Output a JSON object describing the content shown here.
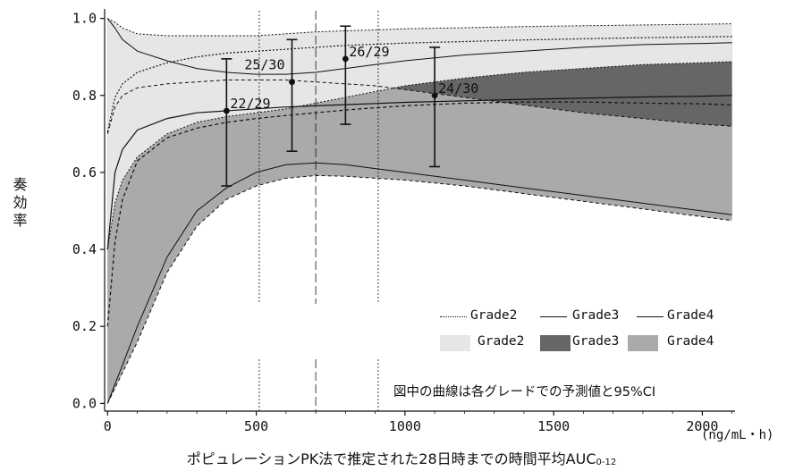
{
  "chart_data": {
    "type": "line",
    "ylabel": "奏効率",
    "xlabel": "ポピュレーションPK法で推定された28日時までの時間平均AUC",
    "xlabel_sub": "0-12",
    "x_unit": "(ng/mL・h)",
    "xlim": [
      -10,
      2110
    ],
    "ylim": [
      -0.02,
      1.02
    ],
    "x_ticks": [
      0,
      500,
      1000,
      1500,
      2000
    ],
    "x_tick_labels": [
      "0",
      "500",
      "1000",
      "1500",
      "2000"
    ],
    "y_ticks": [
      0,
      0.2,
      0.4,
      0.6,
      0.8,
      1.0
    ],
    "y_tick_labels": [
      "0.0",
      "0.2",
      "0.4",
      "0.6",
      "0.8",
      "1.0"
    ],
    "grid": false,
    "vertical_reference_lines": [
      510,
      700,
      910
    ],
    "annotation": "図中の曲線は各グレードでの予測値と95%CI",
    "legend": {
      "position": "bottom-right",
      "lines": [
        "Grade2",
        "Grade3",
        "Grade4"
      ],
      "bands": [
        "Grade2",
        "Grade3",
        "Grade4"
      ]
    },
    "series": [
      {
        "name": "Grade2",
        "color": "#e6e6e6",
        "x": [
          0,
          25,
          50,
          100,
          200,
          300,
          400,
          500,
          600,
          700,
          800,
          900,
          1000,
          1200,
          1400,
          1600,
          1800,
          2000,
          2100
        ],
        "predicted": [
          0.705,
          0.795,
          0.83,
          0.86,
          0.885,
          0.9,
          0.91,
          0.915,
          0.92,
          0.925,
          0.93,
          0.933,
          0.936,
          0.94,
          0.944,
          0.947,
          0.95,
          0.952,
          0.953
        ],
        "lower": [
          0.4,
          0.52,
          0.58,
          0.64,
          0.7,
          0.73,
          0.745,
          0.755,
          0.765,
          0.78,
          0.795,
          0.81,
          0.825,
          0.845,
          0.86,
          0.87,
          0.88,
          0.885,
          0.888
        ],
        "upper": [
          1.0,
          0.99,
          0.975,
          0.96,
          0.955,
          0.955,
          0.955,
          0.955,
          0.96,
          0.965,
          0.968,
          0.97,
          0.973,
          0.976,
          0.979,
          0.981,
          0.983,
          0.985,
          0.986
        ]
      },
      {
        "name": "Grade3",
        "color": "#666666",
        "x": [
          0,
          25,
          50,
          100,
          200,
          300,
          400,
          500,
          600,
          700,
          800,
          900,
          1000,
          1200,
          1400,
          1600,
          1800,
          2000,
          2100
        ],
        "predicted": [
          0.4,
          0.6,
          0.66,
          0.71,
          0.74,
          0.755,
          0.76,
          0.765,
          0.77,
          0.773,
          0.776,
          0.779,
          0.782,
          0.786,
          0.79,
          0.793,
          0.796,
          0.798,
          0.8
        ],
        "lower": [
          0.0,
          0.05,
          0.1,
          0.2,
          0.38,
          0.5,
          0.56,
          0.6,
          0.62,
          0.625,
          0.62,
          0.61,
          0.6,
          0.58,
          0.56,
          0.54,
          0.52,
          0.5,
          0.49
        ],
        "upper": [
          1.0,
          0.975,
          0.945,
          0.915,
          0.89,
          0.87,
          0.86,
          0.855,
          0.855,
          0.86,
          0.87,
          0.88,
          0.89,
          0.905,
          0.915,
          0.925,
          0.932,
          0.935,
          0.937
        ]
      },
      {
        "name": "Grade4",
        "color": "#aaaaaa",
        "x": [
          0,
          25,
          50,
          100,
          200,
          300,
          400,
          500,
          600,
          700,
          800,
          900,
          1000,
          1200,
          1400,
          1600,
          1800,
          2000,
          2100
        ],
        "predicted": [
          0.2,
          0.42,
          0.53,
          0.63,
          0.69,
          0.715,
          0.73,
          0.74,
          0.748,
          0.755,
          0.762,
          0.768,
          0.773,
          0.78,
          0.783,
          0.783,
          0.78,
          0.778,
          0.775
        ],
        "lower": [
          0.0,
          0.04,
          0.08,
          0.16,
          0.34,
          0.46,
          0.53,
          0.565,
          0.585,
          0.592,
          0.59,
          0.585,
          0.58,
          0.565,
          0.545,
          0.525,
          0.505,
          0.485,
          0.475
        ],
        "upper": [
          0.7,
          0.77,
          0.8,
          0.82,
          0.83,
          0.835,
          0.84,
          0.84,
          0.84,
          0.835,
          0.83,
          0.825,
          0.815,
          0.795,
          0.775,
          0.755,
          0.74,
          0.725,
          0.72
        ]
      }
    ],
    "observed": [
      {
        "x": 400,
        "y": 0.76,
        "lower": 0.565,
        "upper": 0.895,
        "label": "22/29"
      },
      {
        "x": 620,
        "y": 0.835,
        "lower": 0.655,
        "upper": 0.945,
        "label": "25/30"
      },
      {
        "x": 800,
        "y": 0.895,
        "lower": 0.725,
        "upper": 0.98,
        "label": "26/29"
      },
      {
        "x": 1100,
        "y": 0.8,
        "lower": 0.615,
        "upper": 0.925,
        "label": "24/30"
      }
    ]
  }
}
